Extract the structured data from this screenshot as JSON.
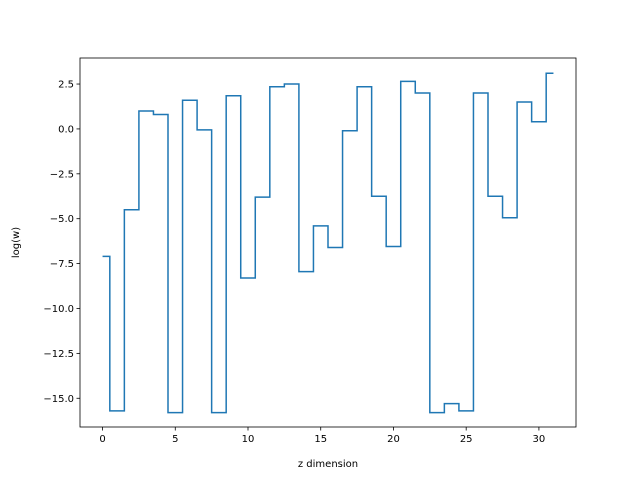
{
  "chart_data": {
    "type": "line",
    "step": "mid",
    "title": "",
    "xlabel": "z dimension",
    "ylabel": "log(w)",
    "xlim": [
      -1.55,
      32.55
    ],
    "ylim": [
      -16.6,
      3.95
    ],
    "xticks": [
      0,
      5,
      10,
      15,
      20,
      25,
      30
    ],
    "xtick_labels": [
      "0",
      "5",
      "10",
      "15",
      "20",
      "25",
      "30"
    ],
    "yticks": [
      -15.0,
      -12.5,
      -10.0,
      -7.5,
      -5.0,
      -2.5,
      0.0,
      2.5
    ],
    "ytick_labels": [
      "−15.0",
      "−12.5",
      "−10.0",
      "−7.5",
      "−5.0",
      "−2.5",
      "0.0",
      "2.5"
    ],
    "grid": false,
    "colors": {
      "line": "#1f77b4",
      "axes": "#000000",
      "background": "#ffffff"
    },
    "series": [
      {
        "x": [
          0,
          1,
          2,
          3,
          4,
          5,
          6,
          7,
          8,
          9,
          10,
          11,
          12,
          13,
          14,
          15,
          16,
          17,
          18,
          19,
          20,
          21,
          22,
          23,
          24,
          25,
          26,
          27,
          28,
          29,
          30,
          31
        ],
        "values": [
          -7.1,
          -15.7,
          -4.5,
          1.0,
          0.8,
          -15.8,
          1.6,
          -0.05,
          -15.8,
          1.85,
          -8.3,
          -3.8,
          2.35,
          2.5,
          -7.95,
          -5.4,
          -6.6,
          -0.1,
          2.35,
          -3.75,
          -6.55,
          2.65,
          2.0,
          -15.8,
          -15.3,
          -15.7,
          2.0,
          -3.75,
          -4.95,
          1.5,
          0.4,
          3.1
        ]
      }
    ]
  }
}
